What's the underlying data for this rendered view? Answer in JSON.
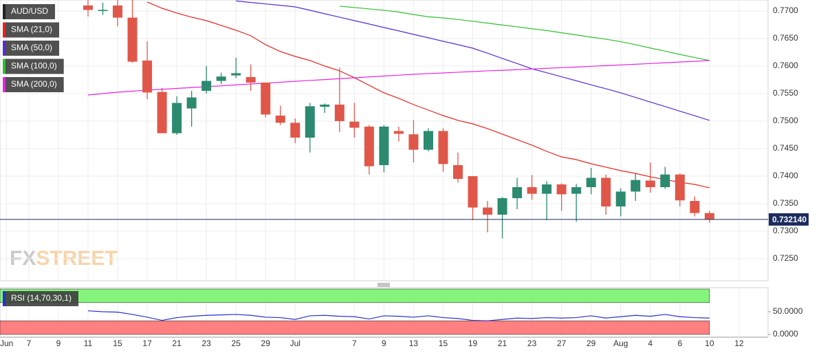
{
  "chart_data": [
    {
      "type": "candlestick",
      "title": "AUD/USD",
      "watermark": [
        "FX",
        "STREET"
      ],
      "up_color": "#2b8a6f",
      "down_color": "#e0574a",
      "ylim": [
        0.721,
        0.772
      ],
      "yticks": [
        {
          "value": 0.725,
          "label": "0.7250"
        },
        {
          "value": 0.73,
          "label": "0.7300"
        },
        {
          "value": 0.735,
          "label": "0.7350"
        },
        {
          "value": 0.74,
          "label": "0.7400"
        },
        {
          "value": 0.745,
          "label": "0.7450"
        },
        {
          "value": 0.75,
          "label": "0.7500"
        },
        {
          "value": 0.755,
          "label": "0.7550"
        },
        {
          "value": 0.76,
          "label": "0.7600"
        },
        {
          "value": 0.765,
          "label": "0.7650"
        },
        {
          "value": 0.77,
          "label": "0.7700"
        }
      ],
      "xtick_labels": [
        "Jun",
        "7",
        "9",
        "11",
        "15",
        "17",
        "21",
        "23",
        "25",
        "29",
        "Jul",
        "7",
        "9",
        "13",
        "15",
        "19",
        "21",
        "23",
        "27",
        "29",
        "Aug",
        "4",
        "6",
        "10",
        "12"
      ],
      "grid": true,
      "last_price": 0.73214,
      "last_price_label": "0.732140",
      "last_price_color": "#1c2b5e",
      "open": [
        0.771,
        0.77,
        0.771,
        0.7688,
        0.761,
        0.7553,
        0.7478,
        0.7523,
        0.7555,
        0.7573,
        0.7583,
        0.758,
        0.757,
        0.751,
        0.7497,
        0.747,
        0.7526,
        0.753,
        0.7499,
        0.749,
        0.742,
        0.7482,
        0.7476,
        0.7448,
        0.7482,
        0.742,
        0.74,
        0.7343,
        0.733,
        0.736,
        0.738,
        0.7368,
        0.7385,
        0.7368,
        0.738,
        0.7397,
        0.7345,
        0.7372,
        0.7392,
        0.738,
        0.7403,
        0.7355,
        0.7333
      ],
      "high": [
        0.772,
        0.7715,
        0.772,
        0.772,
        0.7645,
        0.756,
        0.7545,
        0.7555,
        0.76,
        0.7588,
        0.7615,
        0.7603,
        0.757,
        0.7528,
        0.7505,
        0.7533,
        0.7532,
        0.7597,
        0.7533,
        0.7493,
        0.7493,
        0.749,
        0.7502,
        0.7487,
        0.7487,
        0.7443,
        0.74,
        0.7355,
        0.7362,
        0.7397,
        0.7402,
        0.7391,
        0.7387,
        0.7386,
        0.7415,
        0.7403,
        0.7378,
        0.7405,
        0.7425,
        0.7417,
        0.7405,
        0.7363,
        0.7337
      ],
      "low": [
        0.769,
        0.7693,
        0.7672,
        0.7606,
        0.754,
        0.7478,
        0.7475,
        0.749,
        0.755,
        0.7567,
        0.7578,
        0.7555,
        0.7507,
        0.7493,
        0.746,
        0.7443,
        0.7515,
        0.748,
        0.747,
        0.7403,
        0.7407,
        0.7463,
        0.7425,
        0.7445,
        0.7408,
        0.7388,
        0.732,
        0.7298,
        0.7287,
        0.734,
        0.7357,
        0.732,
        0.7337,
        0.7317,
        0.7367,
        0.733,
        0.7327,
        0.7355,
        0.737,
        0.7377,
        0.7345,
        0.7327,
        0.7315
      ],
      "close": [
        0.7702,
        0.7702,
        0.7688,
        0.7608,
        0.7552,
        0.7478,
        0.7533,
        0.7543,
        0.7573,
        0.7581,
        0.7587,
        0.757,
        0.7512,
        0.7497,
        0.747,
        0.7527,
        0.753,
        0.75,
        0.7488,
        0.7418,
        0.749,
        0.7477,
        0.7448,
        0.7482,
        0.7422,
        0.7395,
        0.7343,
        0.733,
        0.736,
        0.738,
        0.7368,
        0.7385,
        0.7367,
        0.738,
        0.7397,
        0.7345,
        0.7372,
        0.7393,
        0.738,
        0.7403,
        0.7356,
        0.7333,
        0.7321
      ],
      "series": [
        {
          "name": "SMA (21,0)",
          "color": "#e8231d",
          "values": [
            null,
            null,
            null,
            null,
            0.77163,
            0.7705,
            0.76963,
            0.76888,
            0.76825,
            0.76738,
            0.7665,
            0.7655,
            0.76388,
            0.76263,
            0.76175,
            0.761,
            0.76,
            0.75913,
            0.75788,
            0.7565,
            0.75513,
            0.75413,
            0.753,
            0.752,
            0.751,
            0.75013,
            0.7495,
            0.74863,
            0.74763,
            0.74663,
            0.74563,
            0.7445,
            0.7435,
            0.743,
            0.74225,
            0.74163,
            0.741,
            0.7405,
            0.73988,
            0.73938,
            0.73888,
            0.7385,
            0.73788
          ]
        },
        {
          "name": "SMA (50,0)",
          "color": "#5b2bd6",
          "values": [
            null,
            null,
            null,
            null,
            null,
            null,
            null,
            null,
            null,
            null,
            0.77183,
            0.77155,
            0.77129,
            0.77103,
            0.77075,
            0.77014,
            0.7695,
            0.76888,
            0.76825,
            0.76764,
            0.767,
            0.76639,
            0.76575,
            0.76514,
            0.7645,
            0.76389,
            0.76325,
            0.76234,
            0.76138,
            0.76046,
            0.7595,
            0.75879,
            0.75805,
            0.75733,
            0.75659,
            0.75588,
            0.75513,
            0.75431,
            0.75346,
            0.75265,
            0.7518,
            0.75098,
            0.75013
          ]
        },
        {
          "name": "SMA (100,0)",
          "color": "#2fc12f",
          "values": [
            null,
            null,
            null,
            null,
            null,
            null,
            null,
            null,
            null,
            null,
            null,
            null,
            null,
            null,
            null,
            null,
            null,
            0.77088,
            0.77063,
            0.77038,
            0.77013,
            0.76981,
            0.76936,
            0.76895,
            0.76875,
            0.76846,
            0.76813,
            0.7678,
            0.76745,
            0.76713,
            0.76678,
            0.76645,
            0.76605,
            0.76566,
            0.76525,
            0.76488,
            0.76443,
            0.76388,
            0.76328,
            0.76271,
            0.76211,
            0.76155,
            0.761
          ]
        },
        {
          "name": "SMA (200,0)",
          "color": "#e524e5",
          "values": [
            0.75475,
            0.755,
            0.75525,
            0.75544,
            0.75563,
            0.75578,
            0.75594,
            0.75609,
            0.75625,
            0.75641,
            0.75658,
            0.75675,
            0.7569,
            0.75706,
            0.75723,
            0.75738,
            0.75755,
            0.7577,
            0.75786,
            0.75803,
            0.75819,
            0.75835,
            0.7585,
            0.75863,
            0.75875,
            0.75888,
            0.759,
            0.75913,
            0.75923,
            0.75934,
            0.75946,
            0.75959,
            0.75971,
            0.75981,
            0.75996,
            0.76008,
            0.76021,
            0.76033,
            0.76046,
            0.76059,
            0.76073,
            0.76086,
            0.761
          ]
        }
      ]
    },
    {
      "type": "line",
      "title": "RSI (14,70,30,1)",
      "ylim": [
        0,
        100
      ],
      "yticks": [
        {
          "value": 50,
          "label": "50.0000"
        },
        {
          "value": 0,
          "label": "0.0000"
        }
      ],
      "overbought": 70,
      "oversold": 30,
      "overbought_color": "#84f47c",
      "oversold_color": "#ff8080",
      "series": [
        {
          "name": "RSI",
          "color": "#2233cc",
          "values": [
            52,
            50,
            49,
            44,
            38,
            31,
            37,
            40,
            42,
            43,
            44,
            42,
            38,
            37,
            33,
            41,
            42,
            40,
            39,
            34,
            41,
            40,
            38,
            41,
            37,
            35,
            31,
            30,
            33,
            36,
            35,
            37,
            36,
            37,
            41,
            36,
            39,
            42,
            40,
            44,
            39,
            37,
            36
          ]
        }
      ]
    }
  ]
}
